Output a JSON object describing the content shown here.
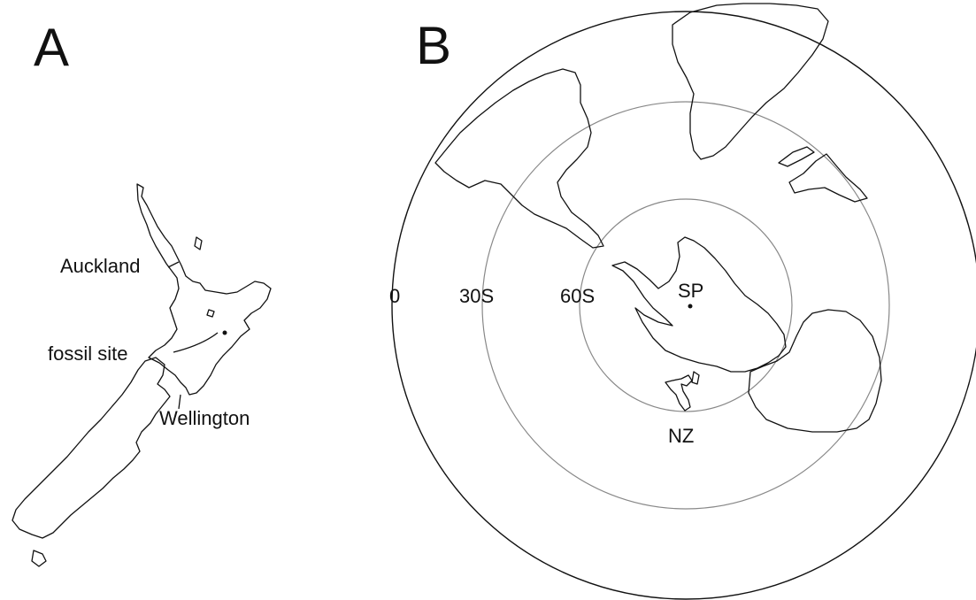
{
  "panel_a": {
    "letter": "A",
    "labels": {
      "auckland": "Auckland",
      "fossil_site": "fossil site",
      "wellington": "Wellington"
    }
  },
  "panel_b": {
    "letter": "B",
    "latitude_labels": [
      "0",
      "30S",
      "60S"
    ],
    "pole_label": "SP",
    "nz_label": "NZ"
  },
  "colors": {
    "ink": "#111111",
    "latitude_circle": "#888888"
  }
}
